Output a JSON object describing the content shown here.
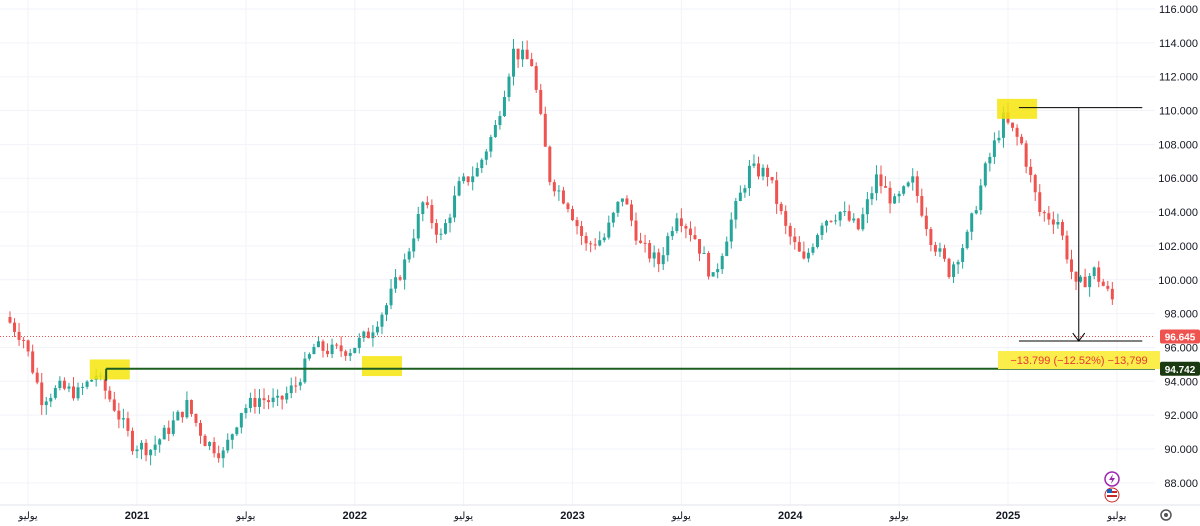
{
  "chart_data": {
    "type": "candlestick",
    "y_axis": {
      "position": "right",
      "ylim": [
        87.0,
        116.3
      ],
      "ticks": [
        "116.000",
        "114.000",
        "112.000",
        "110.000",
        "108.000",
        "106.000",
        "104.000",
        "102.000",
        "100.000",
        "98.000",
        "96.000",
        "94.000",
        "92.000",
        "90.000",
        "88.000"
      ]
    },
    "x_axis": {
      "ticks": [
        {
          "label": "يوليو",
          "date": "2020-07",
          "bold": false
        },
        {
          "label": "2021",
          "date": "2021-01",
          "bold": true
        },
        {
          "label": "يوليو",
          "date": "2021-07",
          "bold": false
        },
        {
          "label": "2022",
          "date": "2022-01",
          "bold": true
        },
        {
          "label": "يوليو",
          "date": "2022-07",
          "bold": false
        },
        {
          "label": "2023",
          "date": "2023-01",
          "bold": true
        },
        {
          "label": "يوليو",
          "date": "2023-07",
          "bold": false
        },
        {
          "label": "2024",
          "date": "2024-01",
          "bold": true
        },
        {
          "label": "يوليو",
          "date": "2024-07",
          "bold": false
        },
        {
          "label": "2025",
          "date": "2025-01",
          "bold": true
        },
        {
          "label": "يوليو",
          "date": "2025-07",
          "bold": false
        }
      ]
    },
    "path": [
      [
        "2020-06",
        97.8
      ],
      [
        "2020-07",
        96.5
      ],
      [
        "2020-08",
        93.0
      ],
      [
        "2020-09",
        93.6
      ],
      [
        "2020-10",
        93.3
      ],
      [
        "2020-11",
        94.4
      ],
      [
        "2020-12",
        92.5
      ],
      [
        "2021-01",
        90.3
      ],
      [
        "2021-02",
        90.0
      ],
      [
        "2021-03",
        91.2
      ],
      [
        "2021-04",
        92.6
      ],
      [
        "2021-05",
        90.5
      ],
      [
        "2021-06",
        89.7
      ],
      [
        "2021-07",
        92.3
      ],
      [
        "2021-08",
        93.0
      ],
      [
        "2021-09",
        92.7
      ],
      [
        "2021-10",
        93.8
      ],
      [
        "2021-11",
        96.0
      ],
      [
        "2021-12",
        95.8
      ],
      [
        "2022-01",
        95.9
      ],
      [
        "2022-02",
        96.8
      ],
      [
        "2022-03",
        98.5
      ],
      [
        "2022-04",
        101.0
      ],
      [
        "2022-05",
        104.5
      ],
      [
        "2022-06",
        102.5
      ],
      [
        "2022-07",
        105.5
      ],
      [
        "2022-08",
        106.5
      ],
      [
        "2022-09",
        109.0
      ],
      [
        "2022-10",
        113.5
      ],
      [
        "2022-11",
        112.8
      ],
      [
        "2022-12",
        106.0
      ],
      [
        "2023-01",
        104.5
      ],
      [
        "2023-02",
        102.0
      ],
      [
        "2023-03",
        102.5
      ],
      [
        "2023-04",
        105.0
      ],
      [
        "2023-05",
        102.0
      ],
      [
        "2023-06",
        101.0
      ],
      [
        "2023-07",
        104.0
      ],
      [
        "2023-08",
        102.5
      ],
      [
        "2023-09",
        100.0
      ],
      [
        "2023-10",
        103.5
      ],
      [
        "2023-11",
        106.5
      ],
      [
        "2023-12",
        106.3
      ],
      [
        "2024-01",
        103.0
      ],
      [
        "2024-02",
        101.0
      ],
      [
        "2024-03",
        103.5
      ],
      [
        "2024-04",
        104.0
      ],
      [
        "2024-05",
        103.0
      ],
      [
        "2024-06",
        106.0
      ],
      [
        "2024-07",
        104.5
      ],
      [
        "2024-08",
        105.8
      ],
      [
        "2024-09",
        102.5
      ],
      [
        "2024-10",
        100.5
      ],
      [
        "2024-11",
        102.5
      ],
      [
        "2024-12",
        106.5
      ],
      [
        "2025-01",
        109.5
      ],
      [
        "2025-02",
        108.0
      ],
      [
        "2025-03",
        104.0
      ],
      [
        "2025-04",
        103.5
      ],
      [
        "2025-05",
        99.5
      ],
      [
        "2025-06",
        100.5
      ],
      [
        "2025-07",
        98.8
      ],
      [
        "2025-08",
        96.6
      ]
    ],
    "support_line": {
      "value": 94.742
    },
    "measurement": {
      "from": 110.17,
      "to": 96.38,
      "label": "−13.799 (−12.52%) −13,799"
    },
    "highlights": [
      {
        "date": "2020-11",
        "value": 94.7
      },
      {
        "date": "2022-02",
        "value": 94.9
      },
      {
        "date": "2025-01",
        "value": 110.1
      }
    ],
    "last_price": {
      "value": 96.645,
      "label": "96.645"
    },
    "support_label": {
      "label": "94.742"
    },
    "colors": {
      "up": "#26a69a",
      "down": "#ef5350",
      "line": "#1b5e20",
      "highlight": "#f5e50b",
      "measure": "#000000",
      "last_price": "#ef5350",
      "support_badge": "#1b3a12",
      "measure_box": "#fbee4b"
    }
  },
  "icons": {
    "lightning": "lightning-icon",
    "flag": "us-flag-icon",
    "settings": "gear-icon"
  }
}
